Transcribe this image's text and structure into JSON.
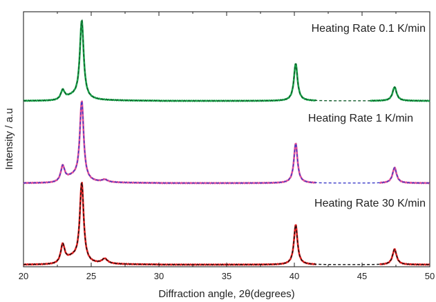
{
  "chart_data": {
    "type": "line",
    "xlabel": "Diffraction angle, 2θ(degrees)",
    "ylabel": "Intensity / a.u",
    "xlim": [
      20,
      50
    ],
    "xticks": [
      20,
      25,
      30,
      35,
      40,
      45,
      50
    ],
    "x_tick_labels": [
      "20",
      "25",
      "30",
      "35",
      "40",
      "45",
      "50"
    ],
    "y_ticks_visible": false,
    "grid": false,
    "legend": "none",
    "annotations": [
      "Heating Rate 0.1 K/min",
      "Heating Rate 1 K/min",
      "Heating Rate 30 K/min"
    ],
    "colors": {
      "0.1": "#1aa34a",
      "0.1_fit": "#0f5a2a",
      "1": "#e0509a",
      "1_fit": "#3a3ac8",
      "30": "#e02020",
      "30_fit": "#111111"
    },
    "peaks_deg": [
      22.9,
      24.3,
      26.0,
      40.1,
      47.4
    ],
    "panels": [
      {
        "label": "Heating Rate 0.1 K/min",
        "offset": 2.0,
        "solid_gaps": [
          [
            41.6,
            45.6
          ]
        ],
        "peak_heights": [
          0.13,
          0.98,
          0.0,
          0.46,
          0.17
        ],
        "plateau": 0.13
      },
      {
        "label": "Heating Rate 1 K/min",
        "offset": 1.0,
        "solid_gaps": [
          [
            41.6,
            46.3
          ]
        ],
        "peak_heights": [
          0.21,
          1.0,
          0.03,
          0.49,
          0.19
        ],
        "plateau": 0.18
      },
      {
        "label": "Heating Rate 30 K/min",
        "offset": 0.0,
        "solid_gaps": [
          [
            41.6,
            46.3
          ]
        ],
        "peak_heights": [
          0.25,
          1.0,
          0.06,
          0.49,
          0.19
        ],
        "plateau": 0.21
      }
    ]
  }
}
